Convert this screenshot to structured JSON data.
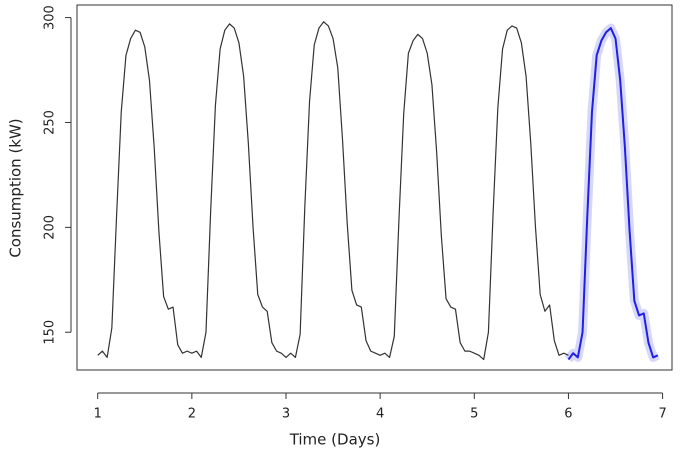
{
  "chart_data": {
    "type": "line",
    "x_label": "Time (Days)",
    "y_label": "Consumption (kW)",
    "xlim": [
      0.78,
      7.1
    ],
    "ylim": [
      132,
      306
    ],
    "xticks": [
      1,
      2,
      3,
      4,
      5,
      6,
      7
    ],
    "yticks": [
      150,
      200,
      250,
      300
    ],
    "series": [
      {
        "color": "#333333",
        "x": [
          1.0,
          1.05,
          1.1,
          1.15,
          1.2,
          1.25,
          1.3,
          1.35,
          1.4,
          1.45,
          1.5,
          1.55,
          1.6,
          1.65,
          1.7,
          1.75,
          1.8,
          1.85,
          1.9,
          1.95,
          2.0,
          2.05,
          2.1,
          2.15,
          2.2,
          2.25,
          2.3,
          2.35,
          2.4,
          2.45,
          2.5,
          2.55,
          2.6,
          2.65,
          2.7,
          2.75,
          2.8,
          2.85,
          2.9,
          2.95,
          3.0,
          3.05,
          3.1,
          3.15,
          3.2,
          3.25,
          3.3,
          3.35,
          3.4,
          3.45,
          3.5,
          3.55,
          3.6,
          3.65,
          3.7,
          3.75,
          3.8,
          3.85,
          3.9,
          3.95,
          4.0,
          4.05,
          4.1,
          4.15,
          4.2,
          4.25,
          4.3,
          4.35,
          4.4,
          4.45,
          4.5,
          4.55,
          4.6,
          4.65,
          4.7,
          4.75,
          4.8,
          4.85,
          4.9,
          4.95,
          5.0,
          5.05,
          5.1,
          5.15,
          5.2,
          5.25,
          5.3,
          5.35,
          5.4,
          5.45,
          5.5,
          5.55,
          5.6,
          5.65,
          5.7,
          5.75,
          5.8,
          5.85,
          5.9,
          5.95,
          6.0
        ],
        "values": [
          139,
          141,
          138,
          152,
          205,
          255,
          282,
          290,
          294,
          293,
          286,
          270,
          238,
          198,
          167,
          161,
          162,
          144,
          140,
          141,
          140,
          141,
          138,
          150,
          208,
          258,
          285,
          294,
          297,
          295,
          288,
          272,
          240,
          200,
          168,
          162,
          160,
          145,
          141,
          140,
          138,
          140,
          138,
          149,
          210,
          260,
          287,
          295,
          298,
          296,
          290,
          276,
          242,
          202,
          170,
          163,
          162,
          146,
          141,
          140,
          139,
          140,
          138,
          148,
          204,
          254,
          283,
          289,
          292,
          290,
          283,
          268,
          236,
          196,
          166,
          162,
          161,
          145,
          141,
          141,
          140,
          139,
          137,
          150,
          207,
          257,
          285,
          294,
          296,
          295,
          288,
          272,
          240,
          200,
          168,
          160,
          163,
          146,
          139,
          140,
          139
        ]
      },
      {
        "color": "#1f1fe6",
        "x": [
          6.0,
          6.05,
          6.1,
          6.15,
          6.2,
          6.25,
          6.3,
          6.35,
          6.4,
          6.45,
          6.5,
          6.55,
          6.6,
          6.65,
          6.7,
          6.75,
          6.8,
          6.85,
          6.9,
          6.95
        ],
        "values": [
          137,
          140,
          138,
          150,
          205,
          255,
          282,
          289,
          293,
          295,
          290,
          270,
          238,
          198,
          165,
          158,
          159,
          145,
          138,
          139
        ]
      }
    ]
  }
}
